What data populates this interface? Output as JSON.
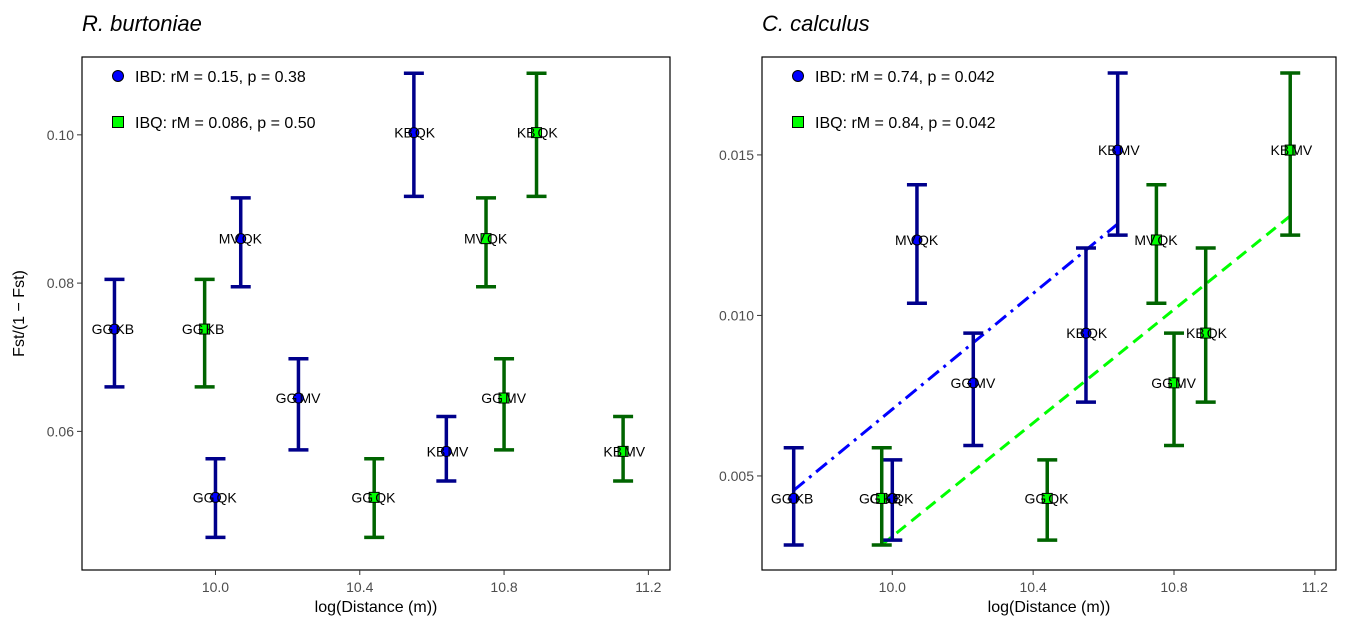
{
  "chart_data": [
    {
      "type": "scatter",
      "title": "R. burtoniae",
      "xlabel": "log(Distance (m))",
      "ylabel": "Fst/(1 − Fst)",
      "xlim": [
        9.63,
        11.26
      ],
      "ylim": [
        0.0413,
        0.1105
      ],
      "xticks": [
        10.0,
        10.4,
        10.8,
        11.2
      ],
      "xtick_labels": [
        "10.0",
        "10.4",
        "10.8",
        "11.2"
      ],
      "yticks": [
        0.06,
        0.08,
        0.1
      ],
      "ytick_labels": [
        "0.06",
        "0.08",
        "0.10"
      ],
      "legend_position": "top-left",
      "series": [
        {
          "name": "IBD: rM = 0.15, p = 0.38",
          "marker": "circle",
          "fill": "#0000ff",
          "error_color": "#00008b",
          "points": [
            {
              "x": 9.72,
              "y": 0.0738,
              "lo": 0.066,
              "hi": 0.0805,
              "a": "GG",
              "b": "KB"
            },
            {
              "x": 10.07,
              "y": 0.086,
              "lo": 0.0795,
              "hi": 0.0915,
              "a": "MV",
              "b": "QK"
            },
            {
              "x": 10.23,
              "y": 0.0645,
              "lo": 0.0575,
              "hi": 0.0698,
              "a": "GG",
              "b": "MV"
            },
            {
              "x": 10.0,
              "y": 0.0511,
              "lo": 0.0457,
              "hi": 0.0563,
              "a": "GG",
              "b": "QK"
            },
            {
              "x": 10.55,
              "y": 0.1003,
              "lo": 0.0917,
              "hi": 0.1083,
              "a": "KB",
              "b": "QK"
            },
            {
              "x": 10.64,
              "y": 0.0573,
              "lo": 0.0533,
              "hi": 0.062,
              "a": "KB",
              "b": "MV"
            }
          ]
        },
        {
          "name": "IBQ: rM = 0.086, p = 0.50",
          "marker": "square",
          "fill": "#00ff00",
          "error_color": "#006400",
          "points": [
            {
              "x": 9.97,
              "y": 0.0738,
              "lo": 0.066,
              "hi": 0.0805,
              "a": "GG",
              "b": "KB"
            },
            {
              "x": 10.75,
              "y": 0.086,
              "lo": 0.0795,
              "hi": 0.0915,
              "a": "MV",
              "b": "QK"
            },
            {
              "x": 10.8,
              "y": 0.0645,
              "lo": 0.0575,
              "hi": 0.0698,
              "a": "GG",
              "b": "MV"
            },
            {
              "x": 10.44,
              "y": 0.0511,
              "lo": 0.0457,
              "hi": 0.0563,
              "a": "GG",
              "b": "QK"
            },
            {
              "x": 10.89,
              "y": 0.1003,
              "lo": 0.0917,
              "hi": 0.1083,
              "a": "KB",
              "b": "QK"
            },
            {
              "x": 11.13,
              "y": 0.0573,
              "lo": 0.0533,
              "hi": 0.062,
              "a": "KB",
              "b": "MV"
            }
          ]
        }
      ],
      "lines": []
    },
    {
      "type": "scatter",
      "title": "C. calculus",
      "xlabel": "log(Distance (m))",
      "ylabel": "",
      "xlim": [
        9.63,
        11.26
      ],
      "ylim": [
        0.00207,
        0.01805
      ],
      "xticks": [
        10.0,
        10.4,
        10.8,
        11.2
      ],
      "xtick_labels": [
        "10.0",
        "10.4",
        "10.8",
        "11.2"
      ],
      "yticks": [
        0.005,
        0.01,
        0.015
      ],
      "ytick_labels": [
        "0.005",
        "0.010",
        "0.015"
      ],
      "legend_position": "top-left",
      "series": [
        {
          "name": "IBD: rM = 0.74, p = 0.042",
          "marker": "circle",
          "fill": "#0000ff",
          "error_color": "#00008b",
          "points": [
            {
              "x": 9.72,
              "y": 0.0043,
              "lo": 0.00285,
              "hi": 0.00588,
              "a": "GG",
              "b": "KB"
            },
            {
              "x": 10.07,
              "y": 0.01235,
              "lo": 0.01038,
              "hi": 0.01407,
              "a": "MV",
              "b": "QK"
            },
            {
              "x": 10.23,
              "y": 0.0079,
              "lo": 0.00595,
              "hi": 0.00945,
              "a": "GG",
              "b": "MV"
            },
            {
              "x": 10.0,
              "y": 0.0043,
              "lo": 0.003,
              "hi": 0.0055,
              "a": "GG",
              "b": "QK"
            },
            {
              "x": 10.55,
              "y": 0.00945,
              "lo": 0.0073,
              "hi": 0.0121,
              "a": "KB",
              "b": "QK"
            },
            {
              "x": 10.64,
              "y": 0.01515,
              "lo": 0.0125,
              "hi": 0.01755,
              "a": "KB",
              "b": "MV"
            }
          ]
        },
        {
          "name": "IBQ: rM = 0.84, p = 0.042",
          "marker": "square",
          "fill": "#00ff00",
          "error_color": "#006400",
          "points": [
            {
              "x": 9.97,
              "y": 0.0043,
              "lo": 0.00285,
              "hi": 0.00588,
              "a": "GG",
              "b": "KB"
            },
            {
              "x": 10.75,
              "y": 0.01235,
              "lo": 0.01038,
              "hi": 0.01407,
              "a": "MV",
              "b": "QK"
            },
            {
              "x": 10.8,
              "y": 0.0079,
              "lo": 0.00595,
              "hi": 0.00945,
              "a": "GG",
              "b": "MV"
            },
            {
              "x": 10.44,
              "y": 0.0043,
              "lo": 0.003,
              "hi": 0.0055,
              "a": "GG",
              "b": "QK"
            },
            {
              "x": 10.89,
              "y": 0.00945,
              "lo": 0.0073,
              "hi": 0.0121,
              "a": "KB",
              "b": "QK"
            },
            {
              "x": 11.13,
              "y": 0.01515,
              "lo": 0.0125,
              "hi": 0.01755,
              "a": "KB",
              "b": "MV"
            }
          ]
        }
      ],
      "lines": [
        {
          "series": "IBD",
          "style": "dashdot",
          "color": "#0000ff",
          "x": [
            9.72,
            10.64
          ],
          "y": [
            0.00455,
            0.01285
          ]
        },
        {
          "series": "IBQ",
          "style": "dashed",
          "color": "#00ff00",
          "x": [
            9.97,
            11.13
          ],
          "y": [
            0.00285,
            0.0131
          ]
        }
      ]
    }
  ]
}
